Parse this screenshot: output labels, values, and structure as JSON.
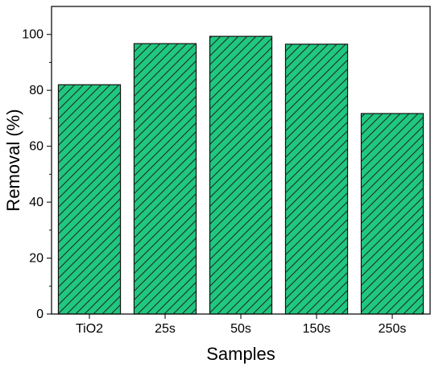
{
  "chart_data": {
    "type": "bar",
    "title": "",
    "xlabel": "Samples",
    "ylabel": "Removal (%)",
    "categories": [
      "TiO2",
      "25s",
      "50s",
      "150s",
      "250s"
    ],
    "values": [
      82,
      96.7,
      99.3,
      96.5,
      71.7
    ],
    "ylim": [
      0,
      110
    ],
    "yticks": [
      0,
      20,
      40,
      60,
      80,
      100
    ],
    "grid": false,
    "legend": "none",
    "bar_color": "#20c77f",
    "bar_pattern": "diagonal-hatch",
    "hatch_color": "#1f2a20",
    "edge_color": "#111111"
  }
}
